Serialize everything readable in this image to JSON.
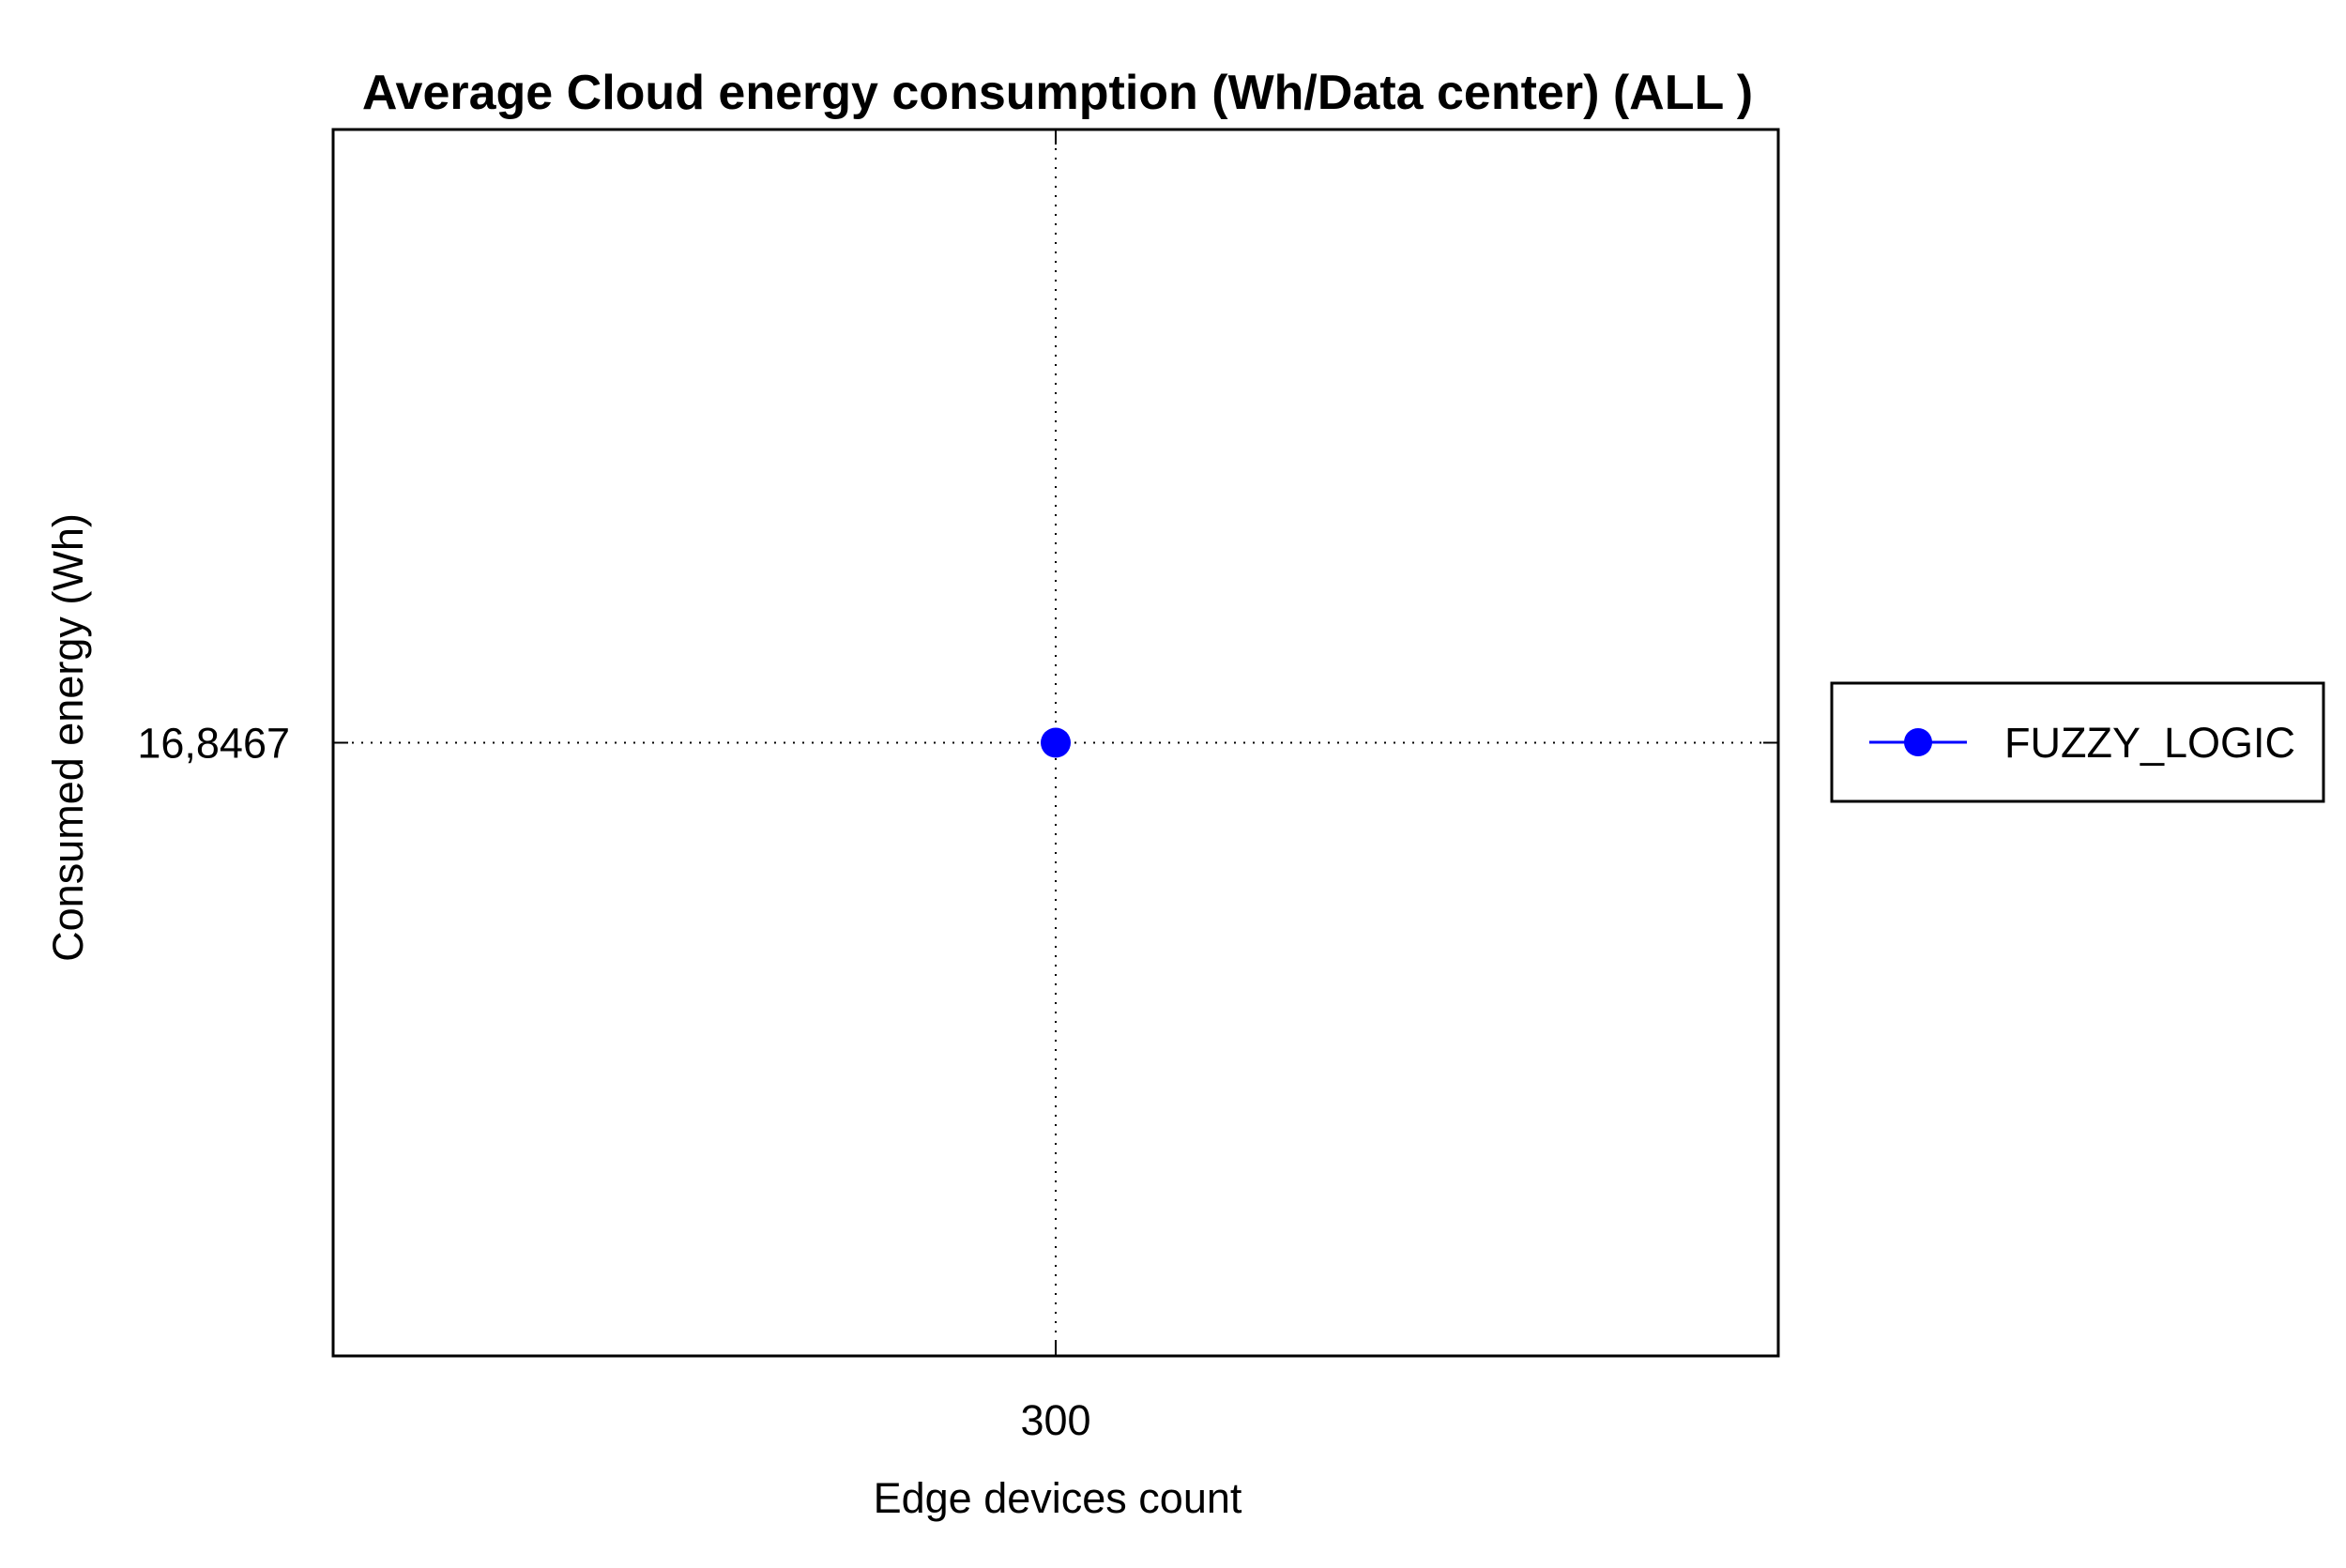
{
  "chart_data": {
    "type": "line",
    "title": "Average Cloud energy consumption (Wh/Data center) (ALL )",
    "xlabel": "Edge devices count",
    "ylabel": "Consumed energy (Wh)",
    "x_ticks": [
      "300"
    ],
    "y_ticks": [
      "16,8467"
    ],
    "x": [
      300
    ],
    "xlim": [
      299,
      301
    ],
    "ylim": [
      16.3467,
      17.3467
    ],
    "grid": true,
    "legend_position": "right",
    "series": [
      {
        "name": "FUZZY_LOGIC",
        "x": [
          300
        ],
        "y": [
          16.8467
        ],
        "color": "#0000ff",
        "marker": "circle"
      }
    ]
  }
}
